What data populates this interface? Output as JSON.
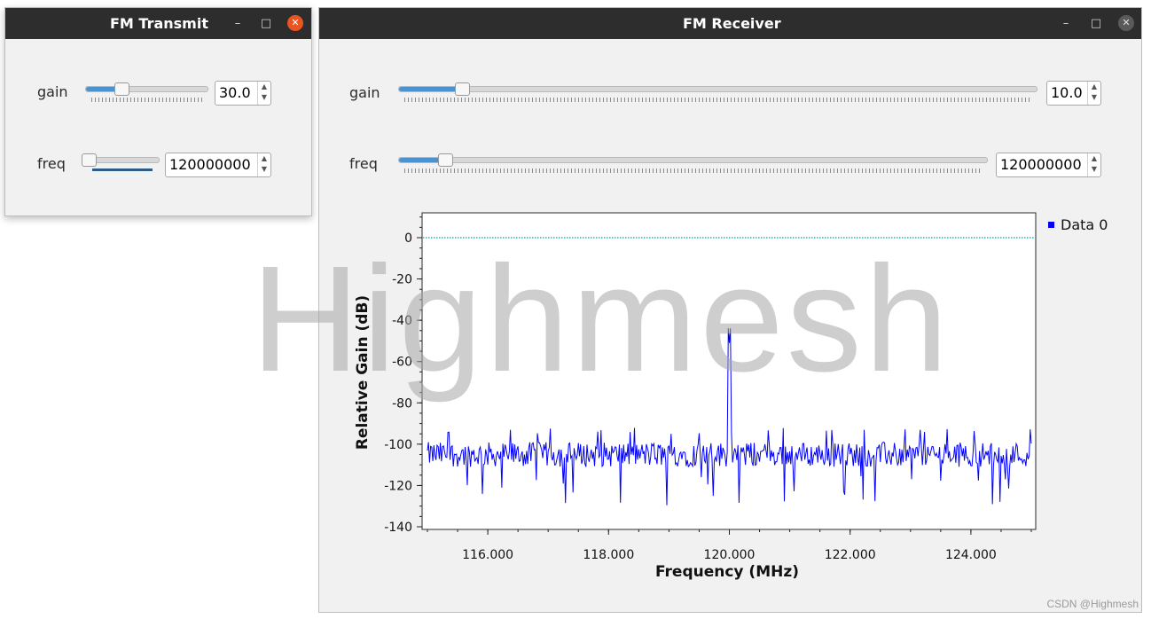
{
  "transmit": {
    "title": "FM Transmit",
    "gain": {
      "label": "gain",
      "value": "30.0",
      "fraction": 0.3
    },
    "freq": {
      "label": "freq",
      "value": "120000000",
      "fraction": 0.05
    }
  },
  "receiver": {
    "title": "FM Receiver",
    "gain": {
      "label": "gain",
      "value": "10.0",
      "fraction": 0.1
    },
    "freq": {
      "label": "freq",
      "value": "120000000",
      "fraction": 0.08
    }
  },
  "window_controls": {
    "minimize": "–",
    "maximize": "□",
    "close": "✕"
  },
  "watermark": "Highmesh",
  "credit": "CSDN @Highmesh",
  "chart_data": {
    "type": "line",
    "xlabel": "Frequency (MHz)",
    "ylabel": "Relative Gain (dB)",
    "xlim": [
      115,
      125
    ],
    "ylim": [
      -140,
      10
    ],
    "xticks": [
      "116.000",
      "118.000",
      "120.000",
      "122.000",
      "124.000"
    ],
    "yticks": [
      "0",
      "-20",
      "-40",
      "-60",
      "-80",
      "-100",
      "-120",
      "-140"
    ],
    "legend_position": "top-right",
    "series": [
      {
        "name": "Data 0",
        "color": "#0000ff",
        "noise_floor_db": -105,
        "noise_min_db": -130,
        "noise_max_db": -95,
        "peak": {
          "x": 120.0,
          "y": -51
        }
      },
      {
        "color": "#00a0a0",
        "style": "dotted",
        "y": 0
      }
    ]
  }
}
